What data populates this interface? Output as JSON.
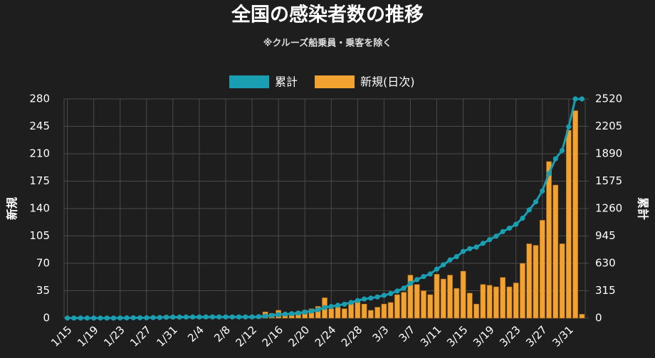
{
  "chart_data": {
    "type": "bar",
    "title": "全国の感染者数の推移",
    "subtitle": "※クルーズ船乗員・乗客を除く",
    "ylabel": "新規",
    "y2label": "累計",
    "categories": [
      "1/15",
      null,
      null,
      null,
      "1/19",
      null,
      null,
      null,
      "1/23",
      null,
      null,
      null,
      "1/27",
      null,
      null,
      null,
      "1/31",
      null,
      null,
      null,
      "2/4",
      null,
      null,
      null,
      "2/8",
      null,
      null,
      null,
      "2/12",
      null,
      null,
      null,
      "2/16",
      null,
      null,
      null,
      "2/20",
      null,
      null,
      null,
      "2/24",
      null,
      null,
      null,
      "2/28",
      null,
      null,
      null,
      "3/3",
      null,
      null,
      null,
      "3/7",
      null,
      null,
      null,
      "3/11",
      null,
      null,
      null,
      "3/15",
      null,
      null,
      null,
      "3/19",
      null,
      null,
      null,
      "3/23",
      null,
      null,
      null,
      "3/27",
      null,
      null,
      null,
      "3/31",
      null,
      null
    ],
    "series": [
      {
        "name": "累計",
        "type": "line",
        "axis": "y2",
        "color": "#1a9fb2",
        "values": [
          1,
          1,
          1,
          1,
          1,
          1,
          1,
          1,
          2,
          3,
          4,
          4,
          4,
          6,
          7,
          10,
          12,
          12,
          13,
          13,
          13,
          14,
          14,
          14,
          14,
          14,
          14,
          14,
          14,
          17,
          25,
          31,
          41,
          46,
          51,
          59,
          69,
          81,
          96,
          122,
          134,
          148,
          160,
          180,
          202,
          220,
          230,
          244,
          262,
          282,
          312,
          345,
          400,
          443,
          478,
          508,
          564,
          614,
          669,
          707,
          767,
          799,
          817,
          860,
          902,
          942,
          994,
          1034,
          1079,
          1149,
          1244,
          1337,
          1462,
          1662,
          1832,
          1927,
          2200,
          2520,
          2520
        ]
      },
      {
        "name": "新規(日次)",
        "type": "bar",
        "axis": "y",
        "color": "#f2a230",
        "values": [
          1,
          0,
          0,
          0,
          0,
          0,
          0,
          0,
          1,
          1,
          1,
          0,
          0,
          2,
          1,
          3,
          2,
          0,
          1,
          0,
          0,
          1,
          0,
          0,
          0,
          0,
          0,
          0,
          0,
          3,
          8,
          6,
          10,
          5,
          5,
          8,
          10,
          12,
          15,
          26,
          12,
          14,
          12,
          20,
          22,
          18,
          10,
          14,
          18,
          20,
          30,
          33,
          55,
          43,
          35,
          30,
          56,
          50,
          55,
          38,
          60,
          32,
          18,
          43,
          42,
          40,
          52,
          40,
          45,
          70,
          95,
          93,
          125,
          200,
          170,
          95,
          240,
          265,
          5
        ]
      }
    ],
    "ylim": [
      0,
      280
    ],
    "yticks": [
      0,
      35,
      70,
      105,
      140,
      175,
      210,
      245,
      280
    ],
    "y2lim": [
      0,
      2520
    ],
    "y2ticks": [
      0,
      315,
      630,
      945,
      1260,
      1575,
      1890,
      2205,
      2520
    ],
    "grid": true
  }
}
